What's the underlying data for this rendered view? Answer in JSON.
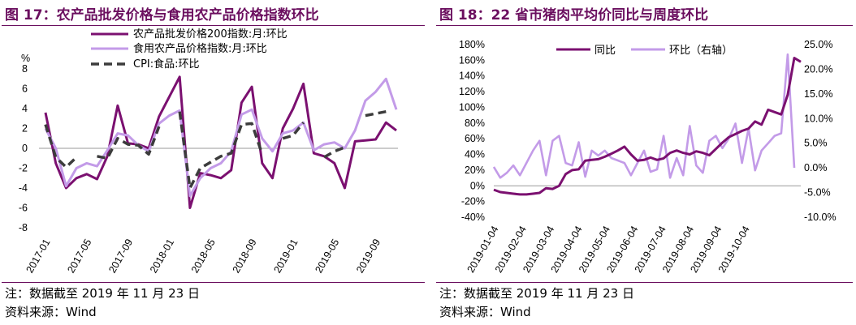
{
  "left": {
    "title": "图 17：农产品批发价格与食用农产品价格指数环比",
    "note": "注：数据截至 2019 年 11 月 23 日",
    "source": "资料来源：Wind",
    "chart_data": {
      "type": "line",
      "unit_label": "%",
      "ylim": [
        -8,
        8
      ],
      "yticks": [
        -8,
        -6,
        -4,
        -2,
        0,
        2,
        4,
        6,
        8
      ],
      "x_labels": [
        "2017-01",
        "2017-05",
        "2017-09",
        "2018-01",
        "2018-05",
        "2018-09",
        "2019-01",
        "2019-05",
        "2019-09"
      ],
      "x": [
        "2017-01",
        "2017-02",
        "2017-03",
        "2017-04",
        "2017-05",
        "2017-06",
        "2017-07",
        "2017-08",
        "2017-09",
        "2017-10",
        "2017-11",
        "2017-12",
        "2018-01",
        "2018-02",
        "2018-03",
        "2018-04",
        "2018-05",
        "2018-06",
        "2018-07",
        "2018-08",
        "2018-09",
        "2018-10",
        "2018-11",
        "2018-12",
        "2019-01",
        "2019-02",
        "2019-03",
        "2019-04",
        "2019-05",
        "2019-06",
        "2019-07",
        "2019-08",
        "2019-09",
        "2019-10",
        "2019-11"
      ],
      "legend_position": "top-left",
      "series": [
        {
          "name": "农产品批发价格200指数:月:环比",
          "color": "#7b1070",
          "style": "solid",
          "values": [
            3.6,
            -1.5,
            -4.0,
            -3.0,
            -2.6,
            -3.1,
            -0.8,
            4.3,
            0.5,
            0.4,
            0.0,
            3.2,
            5.2,
            7.2,
            -6.0,
            -2.5,
            -2.7,
            -3.0,
            -2.2,
            4.6,
            6.2,
            -1.5,
            -3.0,
            2.0,
            4.0,
            6.5,
            -0.5,
            -0.8,
            -1.5,
            -4.0,
            0.7,
            0.8,
            0.9,
            2.6,
            1.8
          ]
        },
        {
          "name": "食用农产品价格指数:月:环比",
          "color": "#c39be8",
          "style": "solid",
          "values": [
            2.0,
            0.0,
            -3.8,
            -2.0,
            -1.5,
            -1.8,
            -0.2,
            1.5,
            1.3,
            0.3,
            -0.3,
            2.5,
            3.3,
            3.8,
            -4.8,
            -3.0,
            -2.0,
            -1.5,
            -0.3,
            3.4,
            3.9,
            1.0,
            -0.3,
            1.5,
            1.8,
            2.6,
            -0.2,
            0.4,
            0.6,
            0.0,
            1.8,
            4.8,
            5.7,
            7.0,
            3.9
          ]
        },
        {
          "name": "CPI:食品:环比",
          "color": "#3c3c3c",
          "style": "dashed",
          "values": [
            2.4,
            -0.9,
            -1.9,
            -0.9,
            null,
            -0.8,
            -1.0,
            1.0,
            0.4,
            0.3,
            -0.6,
            2.2,
            null,
            3.7,
            -4.0,
            -2.0,
            -1.4,
            -0.8,
            -0.5,
            2.4,
            2.5,
            -0.6,
            null,
            1.0,
            1.3,
            2.6,
            null,
            -0.9,
            -0.3,
            0.1,
            null,
            3.3,
            3.5,
            3.7,
            null
          ]
        }
      ]
    }
  },
  "right": {
    "title": "图 18：22 省市猪肉平均价同比与周度环比",
    "note": "注：数据截至 2019 年 11 月 23 日",
    "source": "资料来源：Wind",
    "chart_data": {
      "type": "line",
      "ylim_left": [
        -40,
        180
      ],
      "yticks_left": [
        -40,
        -20,
        0,
        20,
        40,
        60,
        80,
        100,
        120,
        140,
        160,
        180
      ],
      "ylim_right": [
        -10,
        25
      ],
      "yticks_right": [
        -10,
        -5,
        0,
        5,
        10,
        15,
        20,
        25
      ],
      "x_labels": [
        "2019-01-04",
        "2019-02-04",
        "2019-03-04",
        "2019-04-04",
        "2019-05-04",
        "2019-06-04",
        "2019-07-04",
        "2019-08-04",
        "2019-09-04",
        "2019-10-04"
      ],
      "legend_position": "top",
      "series": [
        {
          "name": "同比",
          "axis": "left",
          "color": "#7b1070",
          "values": [
            -5,
            -8,
            -9,
            -10,
            -11,
            -11,
            -10,
            -9,
            -3,
            -4,
            0,
            15,
            20,
            21,
            32,
            33,
            34,
            37,
            41,
            45,
            50,
            40,
            32,
            33,
            36,
            33,
            35,
            42,
            45,
            42,
            40,
            44,
            42,
            39,
            47,
            55,
            62,
            66,
            70,
            73,
            82,
            78,
            97,
            94,
            91,
            116,
            163,
            158
          ]
        },
        {
          "name": "环比（右轴）",
          "axis": "right",
          "color": "#c39be8",
          "values": [
            0.2,
            -2.0,
            -1.0,
            0.5,
            -1.5,
            1.0,
            3.5,
            5.5,
            -1.5,
            5.5,
            6.5,
            1.0,
            0.5,
            5.2,
            -1.8,
            3.5,
            2.5,
            3.5,
            2.0,
            1.5,
            1.0,
            -1.5,
            1.0,
            3.5,
            -0.8,
            -0.3,
            6.5,
            -2.0,
            2.0,
            -1.5,
            8.5,
            0.5,
            -1.0,
            5.5,
            6.5,
            4.0,
            6.0,
            9.0,
            1.0,
            8.0,
            -0.5,
            3.5,
            5.0,
            6.5,
            7.0,
            23.0,
            0.0
          ]
        }
      ]
    }
  }
}
